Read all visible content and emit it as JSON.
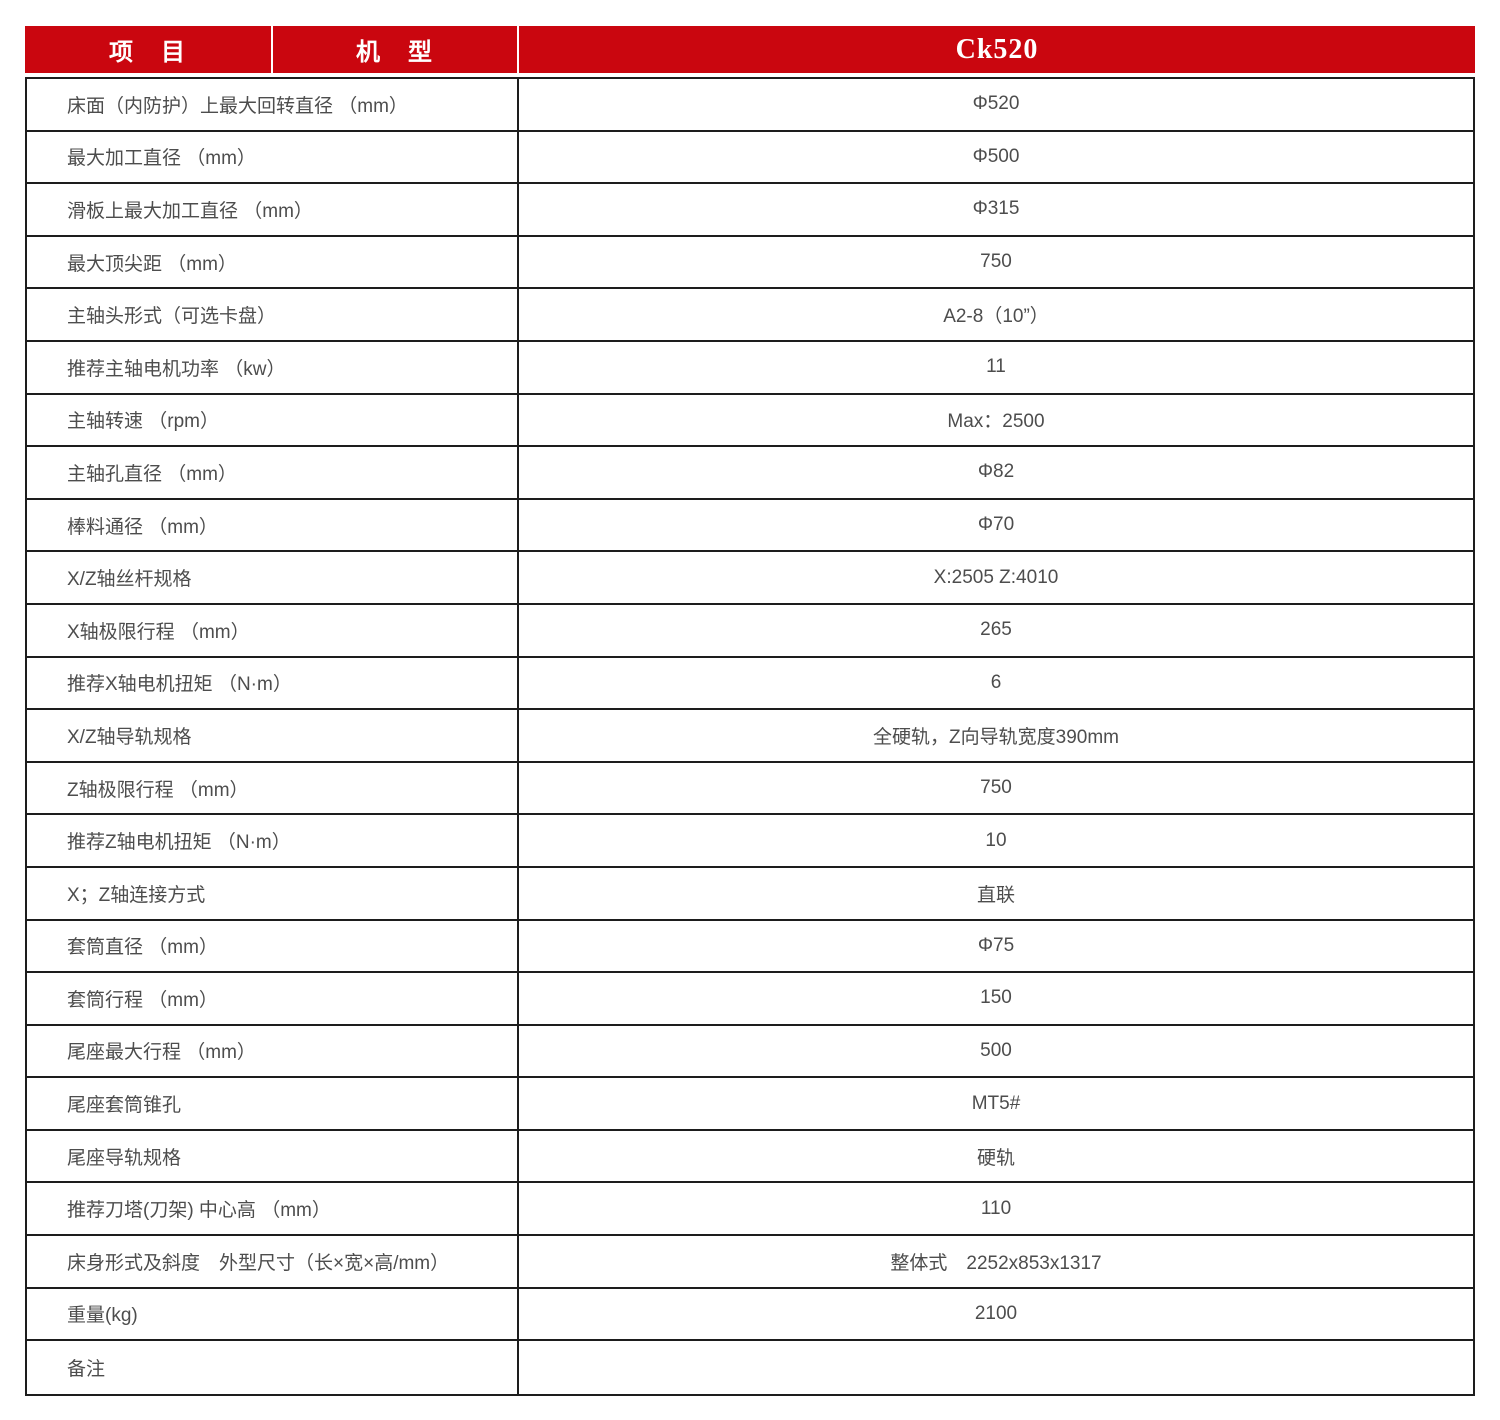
{
  "table": {
    "header": {
      "item_label": "项　目",
      "model_label": "机　型",
      "model_value": "Ck520"
    },
    "colors": {
      "header_bg": "#ca060f",
      "header_text": "#ffffff",
      "body_text": "#4d4d4d",
      "border": "#1d1d1d"
    },
    "rows": [
      {
        "label": "床面（内防护）上最大回转直径 （mm）",
        "value": "Φ520"
      },
      {
        "label": "最大加工直径 （mm）",
        "value": "Φ500"
      },
      {
        "label": "滑板上最大加工直径 （mm）",
        "value": "Φ315"
      },
      {
        "label": "最大顶尖距 （mm）",
        "value": "750"
      },
      {
        "label": "主轴头形式（可选卡盘）",
        "value": "A2-8（10”）"
      },
      {
        "label": "推荐主轴电机功率 （kw）",
        "value": "11"
      },
      {
        "label": "主轴转速 （rpm）",
        "value": "Max：2500"
      },
      {
        "label": "主轴孔直径 （mm）",
        "value": "Φ82"
      },
      {
        "label": "棒料通径 （mm）",
        "value": "Φ70"
      },
      {
        "label": "X/Z轴丝杆规格",
        "value": "X:2505 Z:4010"
      },
      {
        "label": "X轴极限行程 （mm）",
        "value": "265"
      },
      {
        "label": "推荐X轴电机扭矩 （N·m）",
        "value": "6"
      },
      {
        "label": "X/Z轴导轨规格",
        "value": "全硬轨，Z向导轨宽度390mm"
      },
      {
        "label": "Z轴极限行程 （mm）",
        "value": "750"
      },
      {
        "label": "推荐Z轴电机扭矩 （N·m）",
        "value": "10"
      },
      {
        "label": "X；Z轴连接方式",
        "value": "直联"
      },
      {
        "label": "套筒直径 （mm）",
        "value": "Φ75"
      },
      {
        "label": "套筒行程 （mm）",
        "value": "150"
      },
      {
        "label": "尾座最大行程 （mm）",
        "value": "500"
      },
      {
        "label": "尾座套筒锥孔",
        "value": "MT5#"
      },
      {
        "label": "尾座导轨规格",
        "value": "硬轨"
      },
      {
        "label": "推荐刀塔(刀架) 中心高 （mm）",
        "value": "110"
      },
      {
        "label": "床身形式及斜度　外型尺寸（长×宽×高/mm）",
        "value": "整体式　2252x853x1317"
      },
      {
        "label": "重量(kg)",
        "value": "2100"
      },
      {
        "label": "备注",
        "value": ""
      }
    ]
  }
}
